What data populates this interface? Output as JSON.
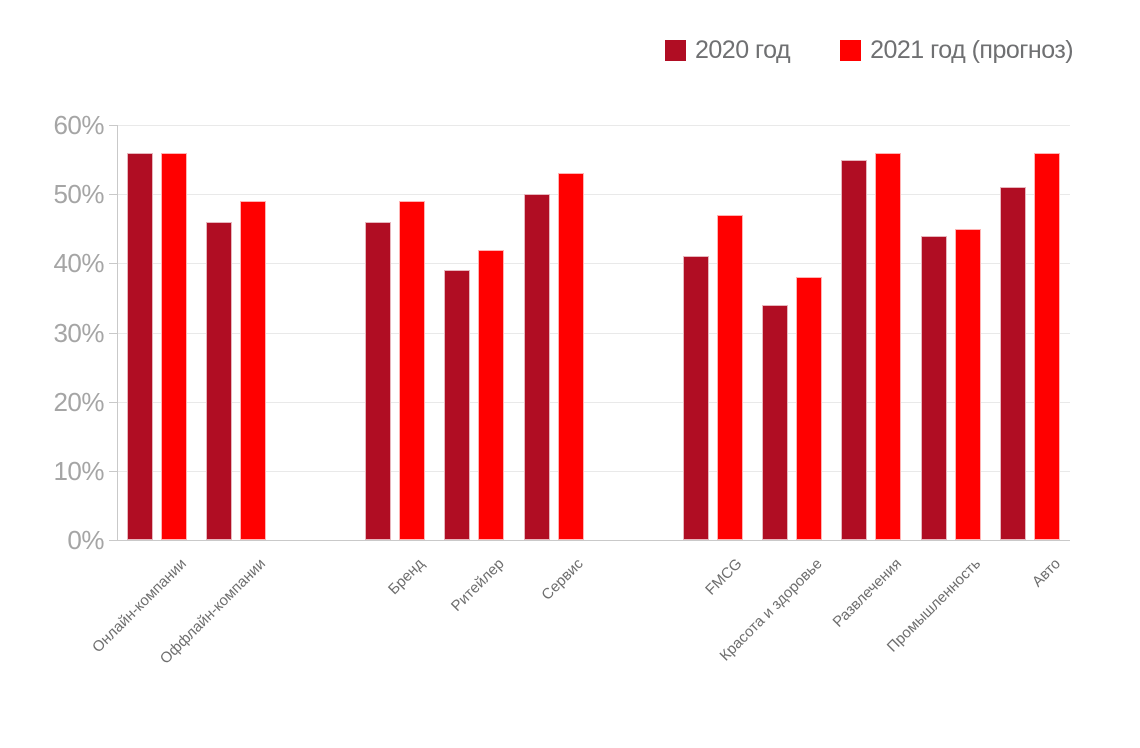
{
  "chart_data": {
    "type": "bar",
    "title": "",
    "xlabel": "",
    "ylabel": "",
    "grid": true,
    "legend_position": "top-right",
    "categories": [
      "Онлайн-компании",
      "Оффлайн-компании",
      "Бренд",
      "Ритейлер",
      "Сервис",
      "FMCG",
      "Красота и здоровье",
      "Развлечения",
      "Промышленность",
      "Авто"
    ],
    "series": [
      {
        "name": "2020 год",
        "color": "#B00D23",
        "values": [
          56,
          46,
          46,
          39,
          50,
          41,
          34,
          55,
          44,
          51
        ]
      },
      {
        "name": "2021 год (прогноз)",
        "color": "#FF0000",
        "values": [
          56,
          49,
          49,
          42,
          53,
          47,
          38,
          56,
          45,
          56
        ]
      }
    ],
    "ylim": [
      0,
      60
    ],
    "yticks": [
      {
        "value": 0,
        "label": "0%"
      },
      {
        "value": 10,
        "label": "10%"
      },
      {
        "value": 20,
        "label": "20%"
      },
      {
        "value": 30,
        "label": "30%"
      },
      {
        "value": 40,
        "label": "40%"
      },
      {
        "value": 50,
        "label": "50%"
      },
      {
        "value": 60,
        "label": "60%"
      }
    ],
    "slot_indices": [
      0,
      1,
      3,
      4,
      5,
      7,
      8,
      9,
      10,
      11
    ],
    "total_slots": 12
  },
  "colors": {
    "series_2020": "#B00D23",
    "series_2021": "#FF0000",
    "gridline": "#E9E9E9",
    "axis": "#C9C9C9",
    "ytick_text": "#A5A5A5",
    "xtick_text": "#6E6E6E",
    "legend_text": "#6F7072",
    "background": "#FFFFFF"
  }
}
